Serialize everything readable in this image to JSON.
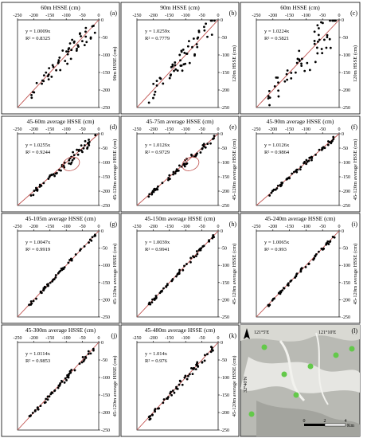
{
  "figure": {
    "panels": [
      {
        "letter": "(a)",
        "title": "60m HSSE (cm)",
        "yaxis_label": "90m HSSE (cm)",
        "equation": "y = 1.0009x",
        "r2": "R² = 0.8325",
        "point_seed": 11,
        "spread": 14,
        "row": 0,
        "col": 0
      },
      {
        "letter": "(b)",
        "title": "90m HSSE (cm)",
        "yaxis_label": "120m HSSE (cm)",
        "equation": "y = 1.0259x",
        "r2": "R² = 0.7779",
        "point_seed": 23,
        "spread": 16,
        "row": 0,
        "col": 1
      },
      {
        "letter": "(c)",
        "title": "60m HSSE (cm)",
        "yaxis_label": "120m HSSE (cm)",
        "equation": "y = 1.0224x",
        "r2": "R² = 0.5821",
        "point_seed": 37,
        "spread": 26,
        "row": 0,
        "col": 2
      },
      {
        "letter": "(d)",
        "title": "45-60m average HSSE (cm)",
        "yaxis_label": "45-120m average HSSE (cm)",
        "equation": "y = 1.0255x",
        "r2": "R² = 0.9244",
        "point_seed": 41,
        "spread": 8,
        "row": 1,
        "col": 0,
        "ellipse": true
      },
      {
        "letter": "(e)",
        "title": "45-75m average HSSE (cm)",
        "yaxis_label": "45-120m average HSSE (cm)",
        "equation": "y = 1.0126x",
        "r2": "R² = 0.9729",
        "point_seed": 53,
        "spread": 5,
        "row": 1,
        "col": 1,
        "ellipse": true
      },
      {
        "letter": "(f)",
        "title": "45-90m average HSSE (cm)",
        "yaxis_label": "45-120m average HSSE (cm)",
        "equation": "y = 1.0126x",
        "r2": "R² = 0.9864",
        "point_seed": 61,
        "spread": 4,
        "row": 1,
        "col": 2
      },
      {
        "letter": "(g)",
        "title": "45-105m average HSSE (cm)",
        "yaxis_label": "45-120m average HSSE (cm)",
        "equation": "y = 1.0047x",
        "r2": "R² = 0.9919",
        "point_seed": 71,
        "spread": 3,
        "row": 2,
        "col": 0
      },
      {
        "letter": "(h)",
        "title": "45-150m average HSSE (cm)",
        "yaxis_label": "45-120m average HSSE (cm)",
        "equation": "y = 1.0039x",
        "r2": "R² = 0.9941",
        "point_seed": 83,
        "spread": 3,
        "row": 2,
        "col": 1
      },
      {
        "letter": "(i)",
        "title": "45-240m average HSSE (cm)",
        "yaxis_label": "45-120m average HSSE (cm)",
        "equation": "y = 1.0065x",
        "r2": "R² = 0.993",
        "point_seed": 97,
        "spread": 3,
        "row": 2,
        "col": 2
      },
      {
        "letter": "(j)",
        "title": "45-300m average HSSE (cm)",
        "yaxis_label": "45-120m average HSSE (cm)",
        "equation": "y = 1.0114x",
        "r2": "R² = 0.9853",
        "point_seed": 101,
        "spread": 4,
        "row": 3,
        "col": 0
      },
      {
        "letter": "(k)",
        "title": "45-480m average HSSE (cm)",
        "yaxis_label": "45-120m average HSSE (cm)",
        "equation": "y = 1.014x",
        "r2": "R² = 0.976",
        "point_seed": 113,
        "spread": 5,
        "row": 3,
        "col": 1
      }
    ],
    "map_panel": {
      "letter": "(l)",
      "lon_label_1": "121°5'E",
      "lon_label_2": "121°10'E",
      "lat_label": "32°40'N",
      "scale_ticks": [
        "0",
        "2",
        "4"
      ],
      "scale_unit": "Km",
      "north_arrow": "A"
    },
    "tick_labels_x": [
      "-250",
      "-200",
      "-150",
      "-100",
      "-50",
      "0"
    ],
    "tick_labels_y": [
      "0",
      "-50",
      "-100",
      "-150",
      "-200",
      "-250"
    ]
  },
  "chart_data": {
    "type": "scatter",
    "xlim": [
      -250,
      0
    ],
    "ylim": [
      -250,
      0
    ],
    "x_ticks": [
      -250,
      -200,
      -150,
      -100,
      -50,
      0
    ],
    "y_ticks": [
      0,
      -50,
      -100,
      -150,
      -200,
      -250
    ],
    "grid": false,
    "panels": [
      {
        "letter": "(a)",
        "xlabel": "60m HSSE (cm)",
        "ylabel": "90m HSSE (cm)",
        "slope": 1.0009,
        "r2": 0.8325
      },
      {
        "letter": "(b)",
        "xlabel": "90m HSSE (cm)",
        "ylabel": "120m HSSE (cm)",
        "slope": 1.0259,
        "r2": 0.7779
      },
      {
        "letter": "(c)",
        "xlabel": "60m HSSE (cm)",
        "ylabel": "120m HSSE (cm)",
        "slope": 1.0224,
        "r2": 0.5821
      },
      {
        "letter": "(d)",
        "xlabel": "45-60m average HSSE (cm)",
        "ylabel": "45-120m average HSSE (cm)",
        "slope": 1.0255,
        "r2": 0.9244
      },
      {
        "letter": "(e)",
        "xlabel": "45-75m average HSSE (cm)",
        "ylabel": "45-120m average HSSE (cm)",
        "slope": 1.0126,
        "r2": 0.9729
      },
      {
        "letter": "(f)",
        "xlabel": "45-90m average HSSE (cm)",
        "ylabel": "45-120m average HSSE (cm)",
        "slope": 1.0126,
        "r2": 0.9864
      },
      {
        "letter": "(g)",
        "xlabel": "45-105m average HSSE (cm)",
        "ylabel": "45-120m average HSSE (cm)",
        "slope": 1.0047,
        "r2": 0.9919
      },
      {
        "letter": "(h)",
        "xlabel": "45-150m average HSSE (cm)",
        "ylabel": "45-120m average HSSE (cm)",
        "slope": 1.0039,
        "r2": 0.9941
      },
      {
        "letter": "(i)",
        "xlabel": "45-240m average HSSE (cm)",
        "ylabel": "45-120m average HSSE (cm)",
        "slope": 1.0065,
        "r2": 0.993
      },
      {
        "letter": "(j)",
        "xlabel": "45-300m average HSSE (cm)",
        "ylabel": "45-120m average HSSE (cm)",
        "slope": 1.0114,
        "r2": 0.9853
      },
      {
        "letter": "(k)",
        "xlabel": "45-480m average HSSE (cm)",
        "ylabel": "45-120m average HSSE (cm)",
        "slope": 1.014,
        "r2": 0.976
      }
    ],
    "colors": {
      "points": "#000000",
      "fit_line": "#c0504d",
      "map_green": "#63c94a"
    }
  }
}
